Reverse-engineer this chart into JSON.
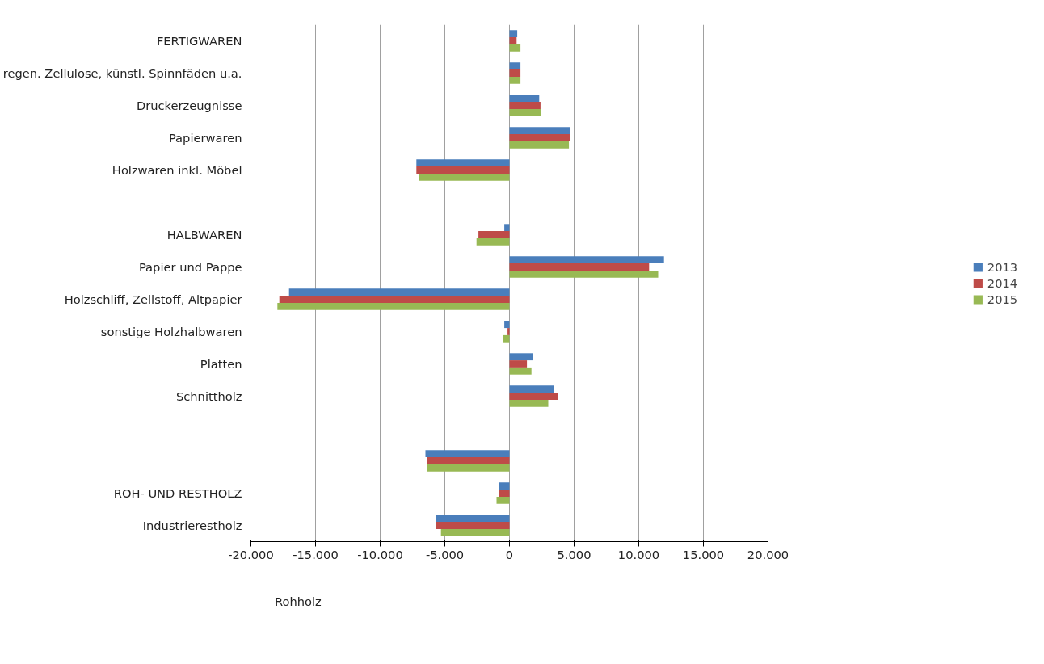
{
  "chart_data": {
    "type": "bar",
    "orientation": "horizontal",
    "categories": [
      "FERTIGWAREN",
      "regen. Zellulose, künstl. Spinnfäden u.a.",
      "Druckerzeugnisse",
      "Papierwaren",
      "Holzwaren inkl. Möbel",
      null,
      "HALBWAREN",
      "Papier und Pappe",
      "Holzschliff, Zellstoff, Altpapier",
      "sonstige Holzhalbwaren",
      "Platten",
      "Schnittholz",
      null,
      null,
      "ROH- UND RESTHOLZ",
      "Industrierestholz"
    ],
    "series": [
      {
        "name": "2013",
        "color": "#4a7ebb",
        "values": [
          600,
          850,
          2300,
          4700,
          -7200,
          null,
          -400,
          11950,
          -17050,
          -400,
          1800,
          3450,
          null,
          -6500,
          -800,
          -5700
        ]
      },
      {
        "name": "2014",
        "color": "#be4b48",
        "values": [
          550,
          850,
          2400,
          4700,
          -7200,
          null,
          -2400,
          10800,
          -17800,
          -150,
          1350,
          3750,
          null,
          -6400,
          -800,
          -5700
        ]
      },
      {
        "name": "2015",
        "color": "#98b954",
        "values": [
          850,
          850,
          2450,
          4600,
          -7000,
          null,
          -2550,
          11500,
          -17950,
          -500,
          1700,
          3000,
          null,
          -6400,
          -1000,
          -5300
        ]
      }
    ],
    "xlim": [
      -20000,
      20000
    ],
    "xticks": [
      {
        "value": -20000,
        "label": "-20.000"
      },
      {
        "value": -15000,
        "label": "-15.000"
      },
      {
        "value": -10000,
        "label": "-10.000"
      },
      {
        "value": -5000,
        "label": "-5.000"
      },
      0,
      {
        "value": 5000,
        "label": "5.000"
      },
      {
        "value": 10000,
        "label": "10.000"
      },
      {
        "value": 15000,
        "label": "15.000"
      },
      {
        "value": 20000,
        "label": "20.000"
      }
    ],
    "annotations": [
      "Rohholz"
    ],
    "grid": "x",
    "legend": "right"
  }
}
